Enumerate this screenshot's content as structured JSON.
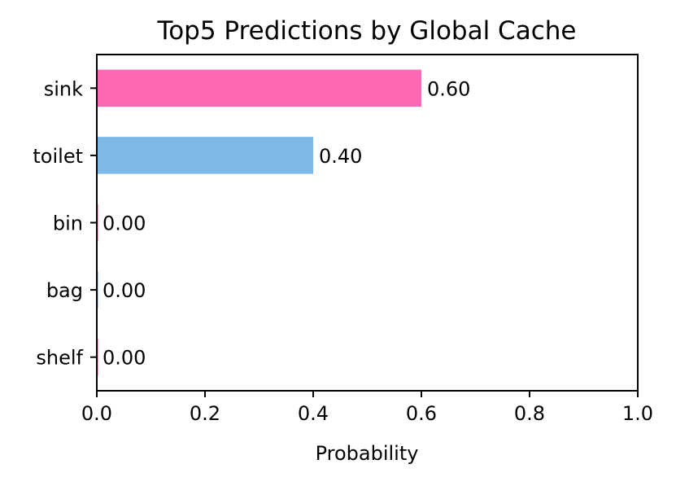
{
  "chart_data": {
    "type": "bar",
    "orientation": "horizontal",
    "title": "Top5 Predictions by Global Cache",
    "xlabel": "Probability",
    "ylabel": "",
    "xlim": [
      0.0,
      1.0
    ],
    "x_ticks": [
      "0.0",
      "0.2",
      "0.4",
      "0.6",
      "0.8",
      "1.0"
    ],
    "x_tick_values": [
      0.0,
      0.2,
      0.4,
      0.6,
      0.8,
      1.0
    ],
    "categories": [
      "sink",
      "toilet",
      "bin",
      "bag",
      "shelf"
    ],
    "values": [
      0.6,
      0.4,
      0.0,
      0.0,
      0.0
    ],
    "data_labels": [
      "0.60",
      "0.40",
      "0.00",
      "0.00",
      "0.00"
    ],
    "colors": [
      "#ff69b4",
      "#7eb8e8",
      "#ff69b4",
      "#7eb8e8",
      "#ff69b4"
    ],
    "grid": false,
    "legend": "none"
  }
}
